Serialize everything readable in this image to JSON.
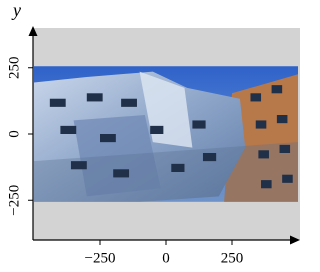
{
  "chart_data": {
    "type": "image",
    "y_label": "y",
    "xlim": [
      -500,
      500
    ],
    "ylim": [
      -400,
      400
    ],
    "image_extent": [
      -500,
      500,
      -256,
      256
    ],
    "background": "#d3d3d3",
    "xticks": [
      {
        "value": -250,
        "label": "−250"
      },
      0,
      250
    ],
    "yticks": [
      {
        "value": -250,
        "label": "−250"
      },
      0,
      250
    ]
  }
}
